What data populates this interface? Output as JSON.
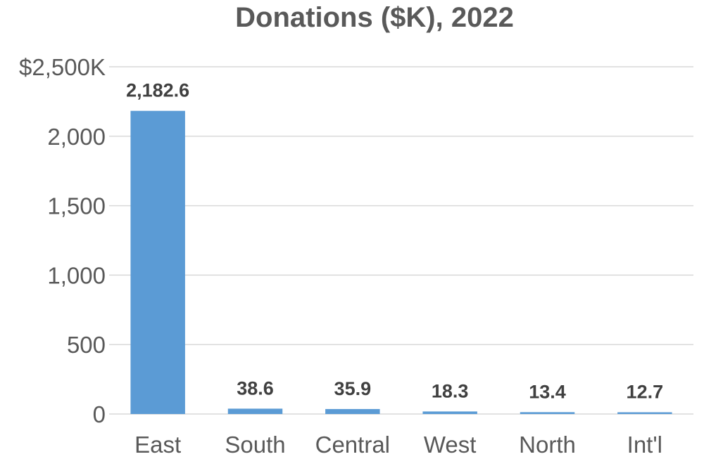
{
  "chart_data": {
    "type": "bar",
    "title": "Donations ($K), 2022",
    "xlabel": "",
    "ylabel": "",
    "categories": [
      "East",
      "South",
      "Central",
      "West",
      "North",
      "Int'l"
    ],
    "values": [
      2182.6,
      38.6,
      35.9,
      18.3,
      13.4,
      12.7
    ],
    "data_labels": [
      "2,182.6",
      "38.6",
      "35.9",
      "18.3",
      "13.4",
      "12.7"
    ],
    "ylim": [
      0,
      2500
    ],
    "yticks": [
      0,
      500,
      1000,
      1500,
      2000,
      2500
    ],
    "ytick_labels": [
      "0",
      "500",
      "1,000",
      "1,500",
      "2,000",
      "$2,500K"
    ],
    "grid": true,
    "legend": "none",
    "bar_color": "#5b9bd5"
  }
}
